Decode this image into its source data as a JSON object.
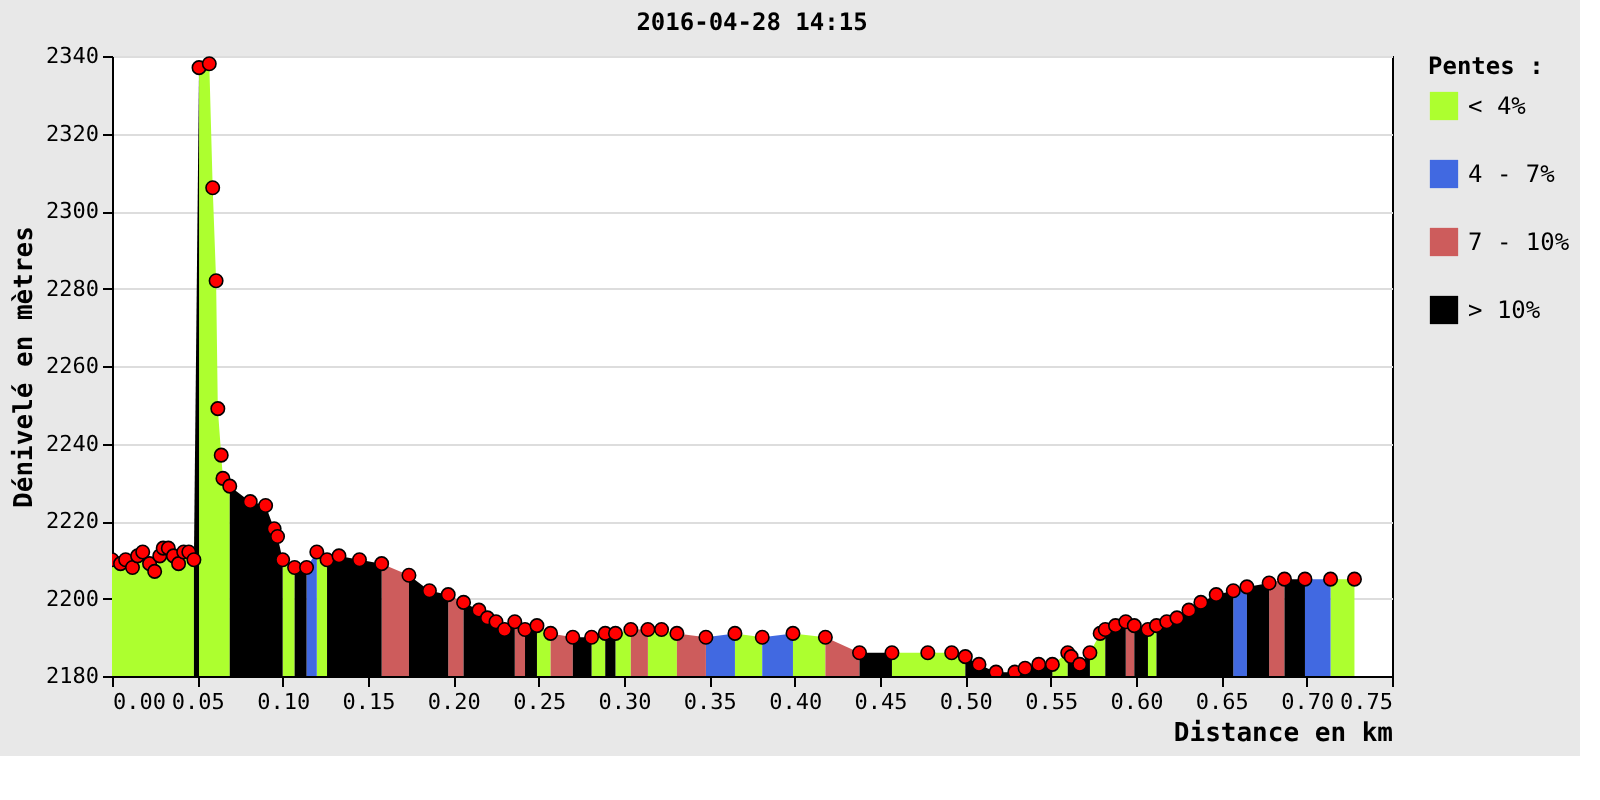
{
  "chart_data": {
    "type": "area",
    "title": "2016-04-28 14:15",
    "xlabel": "Distance en km",
    "ylabel": "Dénivelé en mètres",
    "legend_title": "Pentes :",
    "legend": "right",
    "grid": "y",
    "xlim": [
      0,
      0.75
    ],
    "ylim": [
      2180,
      2340
    ],
    "xticks": [
      {
        "value": 0,
        "label": "0.00"
      },
      0.05,
      {
        "value": 0.1,
        "label": "0.10"
      },
      0.15,
      {
        "value": 0.2,
        "label": "0.20"
      },
      0.25,
      {
        "value": 0.3,
        "label": "0.30"
      },
      0.35,
      {
        "value": 0.4,
        "label": "0.40"
      },
      0.45,
      {
        "value": 0.5,
        "label": "0.50"
      },
      0.55,
      {
        "value": 0.6,
        "label": "0.60"
      },
      0.65,
      {
        "value": 0.7,
        "label": "0.70"
      },
      0.75
    ],
    "yticks": [
      2180,
      2200,
      2220,
      2240,
      2260,
      2280,
      2300,
      2320,
      2340
    ],
    "series": [
      {
        "name": "< 4%",
        "color": "#adff2f",
        "x": [
          0.0,
          0.005,
          0.008,
          0.012,
          0.015,
          0.018,
          0.022,
          0.025,
          0.028,
          0.03,
          0.033,
          0.036,
          0.039,
          0.042,
          0.045,
          0.048,
          null,
          0.051,
          0.057,
          0.059,
          0.061,
          0.062,
          0.064,
          0.065,
          0.069,
          null,
          0.1,
          0.107,
          null,
          0.12,
          0.126,
          null,
          0.249,
          0.257,
          null,
          0.281,
          0.289,
          null,
          0.295,
          0.304,
          null,
          0.314,
          0.322,
          0.331,
          null,
          0.365,
          0.381,
          null,
          0.399,
          0.418,
          null,
          0.457,
          0.478,
          0.492,
          0.5,
          null,
          0.551,
          0.56,
          null,
          0.573,
          0.579,
          0.582,
          null,
          0.607,
          0.612,
          null,
          0.714,
          0.728
        ],
        "values": [
          2210,
          2209,
          2210,
          2208,
          2211,
          2212,
          2209,
          2207,
          2211,
          2213,
          2213,
          2211,
          2209,
          2212,
          2212,
          2210,
          null,
          2337,
          2338,
          2306,
          2282,
          2249,
          2237,
          2231,
          2229,
          null,
          2210,
          2208,
          null,
          2212,
          2210,
          null,
          2193,
          2191,
          null,
          2190,
          2191,
          null,
          2191,
          2192,
          null,
          2192,
          2192,
          2191,
          null,
          2191,
          2190,
          null,
          2191,
          2190,
          null,
          2186,
          2186,
          2186,
          2185,
          null,
          2183,
          2186,
          null,
          2186,
          2191,
          2192,
          null,
          2192,
          2193,
          null,
          2205,
          2205
        ]
      },
      {
        "name": "4 - 7%",
        "color": "#4169e1",
        "x": [
          0.114,
          0.12,
          null,
          0.348,
          0.365,
          null,
          0.381,
          0.399,
          null,
          0.657,
          0.665,
          null,
          0.699,
          0.714
        ],
        "values": [
          2208,
          2212,
          null,
          2190,
          2191,
          null,
          2190,
          2191,
          null,
          2202,
          2203,
          null,
          2205,
          2205
        ]
      },
      {
        "name": "7 - 10%",
        "color": "#cd5c5c",
        "x": [
          0.158,
          0.174,
          null,
          0.197,
          0.206,
          null,
          0.236,
          0.242,
          null,
          0.257,
          0.27,
          null,
          0.304,
          0.314,
          null,
          0.331,
          0.348,
          null,
          0.418,
          0.438,
          null,
          0.594,
          0.599,
          null,
          0.678,
          0.687
        ],
        "values": [
          2209,
          2206,
          null,
          2201,
          2199,
          null,
          2194,
          2192,
          null,
          2191,
          2190,
          null,
          2192,
          2192,
          null,
          2191,
          2190,
          null,
          2190,
          2186,
          null,
          2194,
          2193,
          null,
          2204,
          2205
        ]
      },
      {
        "name": "> 10%",
        "color": "#000000",
        "x": [
          0.048,
          0.051,
          null,
          0.069,
          0.081,
          0.09,
          0.095,
          0.097,
          0.1,
          null,
          0.107,
          0.114,
          null,
          0.126,
          0.133,
          0.145,
          0.158,
          null,
          0.174,
          0.186,
          0.197,
          null,
          0.206,
          0.215,
          0.22,
          0.225,
          0.23,
          0.236,
          null,
          0.242,
          0.249,
          null,
          0.27,
          0.281,
          null,
          0.289,
          0.295,
          null,
          0.438,
          0.457,
          null,
          0.5,
          0.508,
          0.518,
          0.529,
          0.535,
          0.543,
          0.551,
          null,
          0.56,
          0.562,
          0.567,
          0.573,
          null,
          0.582,
          0.588,
          0.594,
          null,
          0.599,
          0.607,
          null,
          0.612,
          0.618,
          0.624,
          0.631,
          0.638,
          0.647,
          0.657,
          null,
          0.665,
          0.678,
          null,
          0.687,
          0.699
        ],
        "values": [
          2210,
          2337,
          null,
          2229,
          2225,
          2224,
          2218,
          2216,
          2210,
          null,
          2208,
          2208,
          null,
          2210,
          2211,
          2210,
          2209,
          null,
          2206,
          2202,
          2201,
          null,
          2199,
          2197,
          2195,
          2194,
          2192,
          2194,
          null,
          2192,
          2193,
          null,
          2190,
          2190,
          null,
          2191,
          2191,
          null,
          2186,
          2186,
          null,
          2185,
          2183,
          2181,
          2181,
          2182,
          2183,
          2183,
          null,
          2186,
          2185,
          2183,
          2186,
          null,
          2192,
          2193,
          2194,
          null,
          2193,
          2192,
          null,
          2193,
          2194,
          2195,
          2197,
          2199,
          2201,
          2202,
          null,
          2203,
          2204,
          null,
          2205,
          2205
        ]
      },
      {
        "type": "scatter",
        "marker": "circle",
        "color": "#ff0000",
        "x": [
          0.0,
          0.005,
          0.008,
          0.012,
          0.015,
          0.018,
          0.022,
          0.025,
          0.028,
          0.03,
          0.033,
          0.036,
          0.039,
          0.042,
          0.045,
          0.048,
          0.051,
          0.057,
          0.059,
          0.061,
          0.062,
          0.064,
          0.065,
          0.069,
          0.081,
          0.09,
          0.095,
          0.097,
          0.1,
          0.107,
          0.114,
          0.12,
          0.126,
          0.133,
          0.145,
          0.158,
          0.174,
          0.186,
          0.197,
          0.206,
          0.215,
          0.22,
          0.225,
          0.23,
          0.236,
          0.242,
          0.249,
          0.257,
          0.27,
          0.281,
          0.289,
          0.295,
          0.304,
          0.314,
          0.322,
          0.331,
          0.348,
          0.365,
          0.381,
          0.399,
          0.418,
          0.438,
          0.457,
          0.478,
          0.492,
          0.5,
          0.508,
          0.518,
          0.529,
          0.535,
          0.543,
          0.551,
          0.56,
          0.562,
          0.567,
          0.573,
          0.579,
          0.582,
          0.588,
          0.594,
          0.599,
          0.607,
          0.612,
          0.618,
          0.624,
          0.631,
          0.638,
          0.647,
          0.657,
          0.665,
          0.678,
          0.687,
          0.699,
          0.714,
          0.728
        ],
        "values": [
          2210,
          2209,
          2210,
          2208,
          2211,
          2212,
          2209,
          2207,
          2211,
          2213,
          2213,
          2211,
          2209,
          2212,
          2212,
          2210,
          2337,
          2338,
          2306,
          2282,
          2249,
          2237,
          2231,
          2229,
          2225,
          2224,
          2218,
          2216,
          2210,
          2208,
          2208,
          2212,
          2210,
          2211,
          2210,
          2209,
          2206,
          2202,
          2201,
          2199,
          2197,
          2195,
          2194,
          2192,
          2194,
          2192,
          2193,
          2191,
          2190,
          2190,
          2191,
          2191,
          2192,
          2192,
          2192,
          2191,
          2190,
          2191,
          2190,
          2191,
          2190,
          2186,
          2186,
          2186,
          2186,
          2185,
          2183,
          2181,
          2181,
          2182,
          2183,
          2183,
          2186,
          2185,
          2183,
          2186,
          2191,
          2192,
          2193,
          2194,
          2193,
          2192,
          2193,
          2194,
          2195,
          2197,
          2199,
          2201,
          2202,
          2203,
          2204,
          2205,
          2205,
          2205,
          2205
        ]
      }
    ]
  }
}
